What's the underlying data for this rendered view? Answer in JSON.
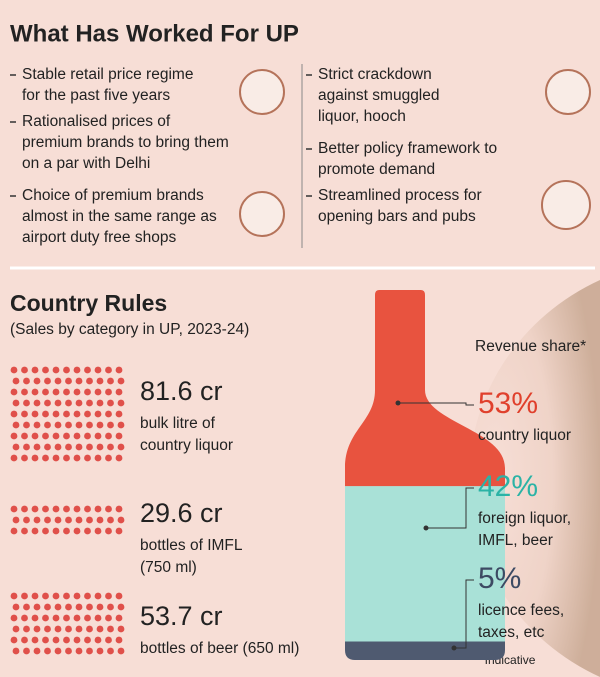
{
  "header": {
    "title": "What Has Worked For UP"
  },
  "left_items": [
    {
      "lines": [
        "Stable retail price regime",
        "for the past five years"
      ]
    },
    {
      "lines": [
        "Rationalised prices of",
        "premium brands to bring them",
        "on a par with Delhi"
      ]
    },
    {
      "lines": [
        "Choice of premium brands",
        "almost in the same range as",
        "airport duty free shops"
      ]
    }
  ],
  "right_items": [
    {
      "lines": [
        "Strict crackdown",
        "against smuggled",
        "liquor, hooch"
      ]
    },
    {
      "lines": [
        "Better policy framework to",
        "promote demand"
      ]
    },
    {
      "lines": [
        "Streamlined process for",
        "opening bars and pubs"
      ]
    }
  ],
  "section": {
    "title": "Country Rules",
    "subtitle": "(Sales by category in UP, 2023-24)"
  },
  "sales": [
    {
      "figure": "81.6 cr",
      "lines": [
        "bulk litre of",
        "country liquor"
      ]
    },
    {
      "figure": "29.6 cr",
      "lines": [
        "bottles of IMFL",
        "(750 ml)"
      ]
    },
    {
      "figure": "53.7 cr",
      "lines": [
        "bottles of beer (650 ml)"
      ]
    }
  ],
  "revenue": {
    "title": "Revenue share*",
    "note": "*Indicative",
    "segments": [
      {
        "value": 53,
        "value_label": "53%",
        "lines": [
          "country liquor"
        ],
        "color": "#e8533f",
        "text_color": "#e0402c"
      },
      {
        "value": 42,
        "value_label": "42%",
        "lines": [
          "foreign liquor,",
          "IMFL, beer"
        ],
        "color": "#a9e1d7",
        "text_color": "#2bb3a6"
      },
      {
        "value": 5,
        "value_label": "5%",
        "lines": [
          "licence fees,",
          "taxes, etc"
        ],
        "color": "#4f5a70",
        "text_color": "#3d4a63"
      }
    ]
  }
}
